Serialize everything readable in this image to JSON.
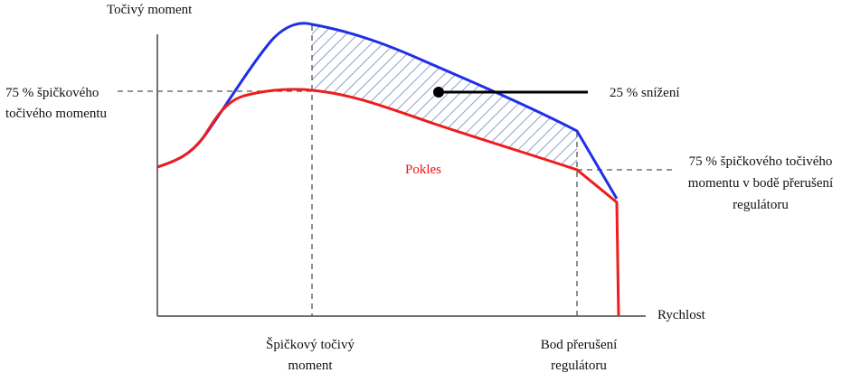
{
  "axes": {
    "y_label": "Točivý moment",
    "x_label": "Rychlost"
  },
  "labels": {
    "peak_torque_75": [
      "75 % špičkového",
      "točivého momentu"
    ],
    "reduction": "25 % snížení",
    "drop": "Pokles",
    "breakpoint_torque_75": [
      "75 % špičkového točivého",
      "momentu v bodě přerušení",
      "regulátoru"
    ],
    "peak_torque_speed": [
      "Špičkový točivý",
      "moment"
    ],
    "breakpoint_speed": [
      "Bod přerušení",
      "regulátoru"
    ]
  }
}
